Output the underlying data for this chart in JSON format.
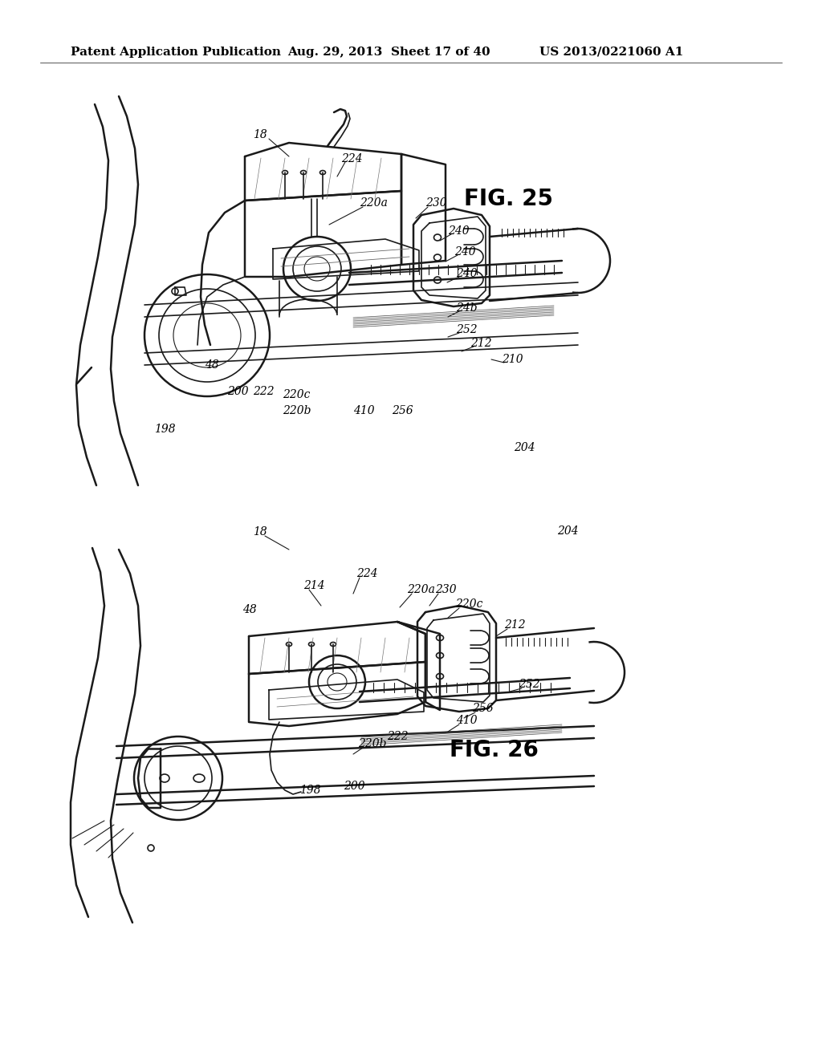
{
  "background_color": "#ffffff",
  "header_text": "Patent Application Publication",
  "header_date": "Aug. 29, 2013",
  "header_sheet": "Sheet 17 of 40",
  "header_patent": "US 2013/0221060 A1",
  "fig25_label": "FIG. 25",
  "fig26_label": "FIG. 26",
  "line_color": "#1a1a1a",
  "text_color": "#000000",
  "lw_thick": 1.8,
  "lw_med": 1.2,
  "lw_thin": 0.8,
  "header_font_size": 11,
  "fig_label_font_size": 20,
  "ref_font_size": 10
}
